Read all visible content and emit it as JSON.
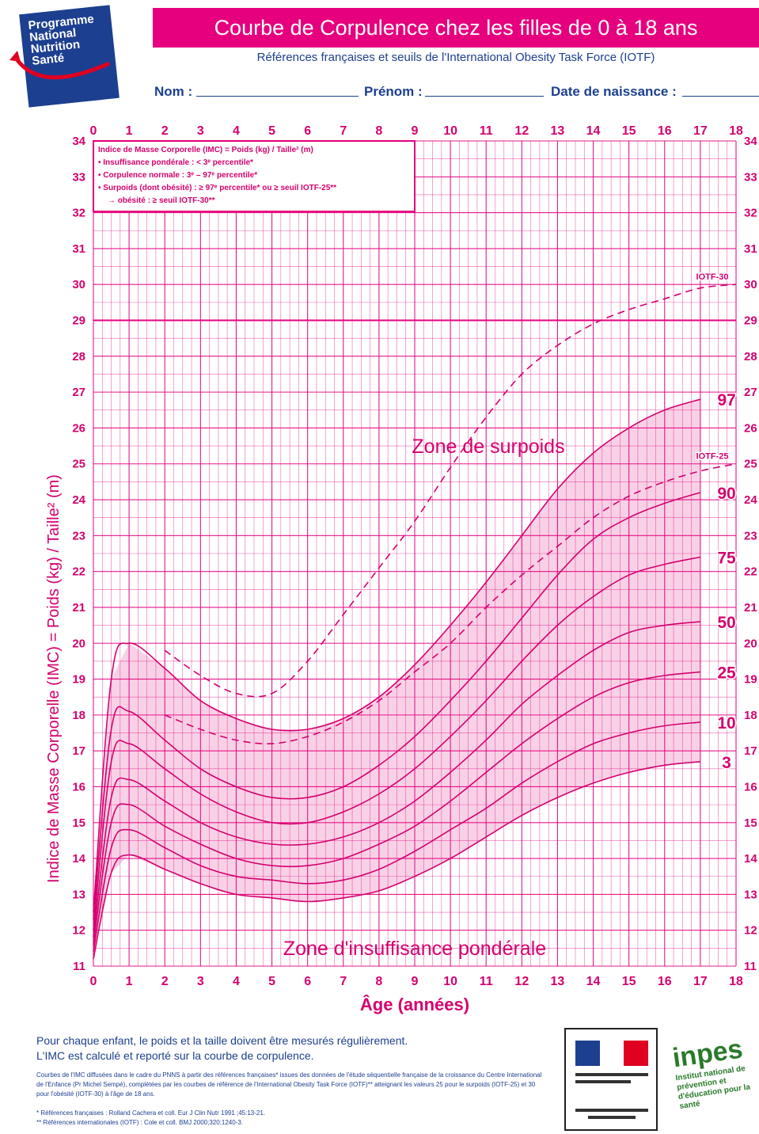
{
  "header": {
    "logo_lines": [
      "Programme",
      "National",
      "Nutrition",
      "Santé"
    ],
    "title": "Courbe de Corpulence chez les filles de 0 à 18 ans",
    "subtitle": "Références françaises et seuils de l'International Obesity Task Force (IOTF)",
    "field_nom": "Nom :",
    "field_prenom": "Prénom :",
    "field_naissance": "Date de naissance :"
  },
  "legend": {
    "line1": "Indice de Masse Corporelle (IMC) = Poids (kg) / Taille² (m)",
    "line2": "• Insuffisance pondérale : < 3ᵉ percentile*",
    "line3": "• Corpulence normale : 3ᵉ – 97ᵉ percentile*",
    "line4": "• Surpoids (dont obésité) : ≥ 97ᵉ percentile* ou ≥ seuil IOTF-25**",
    "line5": "→ obésité : ≥ seuil IOTF-30**"
  },
  "chart_data": {
    "type": "line",
    "xlabel": "Âge (années)",
    "ylabel": "Indice de Masse Corporelle (IMC) = Poids (kg) / Taille² (m)",
    "xlim": [
      0,
      18
    ],
    "ylim": [
      11,
      34
    ],
    "x_ticks": [
      0,
      1,
      2,
      3,
      4,
      5,
      6,
      7,
      8,
      9,
      10,
      11,
      12,
      13,
      14,
      15,
      16,
      17,
      18
    ],
    "y_ticks": [
      11,
      12,
      13,
      14,
      15,
      16,
      17,
      18,
      19,
      20,
      21,
      22,
      23,
      24,
      25,
      26,
      27,
      28,
      29,
      30,
      31,
      32,
      33,
      34
    ],
    "reference_line_y": 29,
    "zone_labels": {
      "top": "Zone de surpoids",
      "bottom": "Zone d'insuffisance pondérale"
    },
    "x": [
      0,
      0.5,
      1,
      2,
      3,
      4,
      5,
      6,
      7,
      8,
      9,
      10,
      11,
      12,
      13,
      14,
      15,
      16,
      17
    ],
    "series": [
      {
        "name": "97",
        "values": [
          12.5,
          19.0,
          20.0,
          19.3,
          18.4,
          17.9,
          17.6,
          17.6,
          17.9,
          18.5,
          19.4,
          20.5,
          21.7,
          23.0,
          24.3,
          25.3,
          26.0,
          26.5,
          26.8
        ],
        "dashed": false
      },
      {
        "name": "90",
        "values": [
          12.3,
          17.6,
          18.1,
          17.3,
          16.5,
          16.0,
          15.7,
          15.7,
          16.0,
          16.6,
          17.4,
          18.4,
          19.5,
          20.7,
          21.9,
          22.9,
          23.5,
          23.9,
          24.2
        ],
        "dashed": false
      },
      {
        "name": "75",
        "values": [
          12.0,
          16.7,
          17.2,
          16.5,
          15.8,
          15.3,
          15.0,
          15.0,
          15.3,
          15.8,
          16.5,
          17.4,
          18.4,
          19.5,
          20.5,
          21.3,
          21.9,
          22.2,
          22.4
        ],
        "dashed": false
      },
      {
        "name": "50",
        "values": [
          11.8,
          15.7,
          16.2,
          15.6,
          15.0,
          14.6,
          14.4,
          14.4,
          14.6,
          15.0,
          15.6,
          16.4,
          17.3,
          18.3,
          19.1,
          19.8,
          20.3,
          20.5,
          20.6
        ],
        "dashed": false
      },
      {
        "name": "25",
        "values": [
          11.6,
          15.0,
          15.5,
          14.9,
          14.4,
          14.0,
          13.8,
          13.8,
          14.0,
          14.4,
          14.9,
          15.6,
          16.4,
          17.2,
          17.9,
          18.5,
          18.9,
          19.1,
          19.2
        ],
        "dashed": false
      },
      {
        "name": "10",
        "values": [
          11.4,
          14.3,
          14.8,
          14.3,
          13.8,
          13.5,
          13.4,
          13.3,
          13.4,
          13.7,
          14.2,
          14.8,
          15.4,
          16.1,
          16.7,
          17.2,
          17.5,
          17.7,
          17.8
        ],
        "dashed": false
      },
      {
        "name": "3",
        "values": [
          11.2,
          13.6,
          14.1,
          13.7,
          13.3,
          13.0,
          12.9,
          12.8,
          12.9,
          13.1,
          13.5,
          14.0,
          14.6,
          15.2,
          15.7,
          16.1,
          16.4,
          16.6,
          16.7
        ],
        "dashed": false
      }
    ],
    "iotf": [
      {
        "name": "IOTF-30",
        "x": [
          2,
          3,
          4,
          5,
          6,
          7,
          8,
          9,
          10,
          11,
          12,
          13,
          14,
          15,
          16,
          17,
          18
        ],
        "values": [
          19.8,
          19.1,
          18.6,
          18.6,
          19.5,
          20.8,
          22.1,
          23.4,
          24.9,
          26.3,
          27.5,
          28.3,
          28.9,
          29.3,
          29.6,
          29.9,
          30.0
        ]
      },
      {
        "name": "IOTF-25",
        "x": [
          2,
          3,
          4,
          5,
          6,
          7,
          8,
          9,
          10,
          11,
          12,
          13,
          14,
          15,
          16,
          17,
          18
        ],
        "values": [
          18.0,
          17.6,
          17.3,
          17.2,
          17.4,
          17.8,
          18.4,
          19.2,
          20.0,
          21.0,
          21.9,
          22.7,
          23.5,
          24.1,
          24.5,
          24.8,
          25.0
        ]
      }
    ]
  },
  "footer": {
    "main1": "Pour chaque enfant, le poids et la taille doivent être mesurés régulièrement.",
    "main2": "L'IMC est calculé et reporté sur la courbe de corpulence.",
    "small": "Courbes de l'IMC diffusées dans le cadre du PNNS à partir des références françaises* issues des données de l'étude séquentielle française de la croissance du Centre International de l'Enfance (Pr Michel Sempé), complétées par les courbes de référence de l'International Obesity Task Force (IOTF)** atteignant les valeurs 25 pour le surpoids (IOTF-25) et 30 pour l'obésité (IOTF-30) à l'âge de 18 ans.",
    "ref1": "* Références françaises : Rolland Cachera et coll. Eur J Clin Nutr 1991 ;45:13-21.",
    "ref2": "** Références internationales (IOTF) : Cole et coll. BMJ 2000;320:1240-3.",
    "inpes_name": "inpes",
    "inpes_tag": "Institut national de prévention et d'éducation pour la santé"
  },
  "colors": {
    "accent": "#e6007e",
    "grid": "#e4007c",
    "band": "#f7c6e0",
    "navy": "#1d3f8f"
  }
}
